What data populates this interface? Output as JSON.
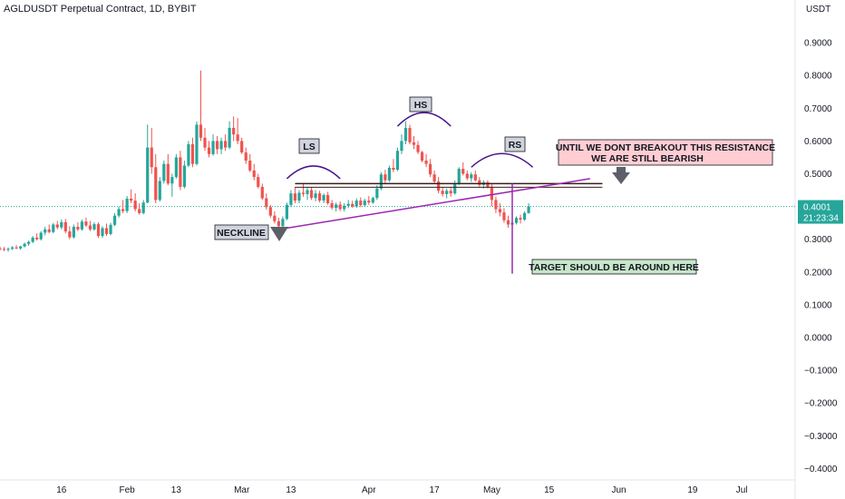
{
  "header": {
    "title": "AGLDUSDT Perpetual Contract, 1D, BYBIT",
    "currency": "USDT"
  },
  "price_tag": {
    "price": "0.4001",
    "countdown": "21:23:34"
  },
  "colors": {
    "up": "#26a69a",
    "down": "#ef5350",
    "neckline": "#9c27b0",
    "resistance": "#3a1c1c",
    "tag_bg": "#26a69a"
  },
  "annotations": {
    "neckline": "NECKLINE",
    "ls": "LS",
    "hs": "HS",
    "rs": "RS",
    "resistance_line1": "UNTIL WE DONT BREAKOUT THIS RESISTANCE",
    "resistance_line2": "WE ARE STILL BEARISH",
    "target": "TARGET SHOULD BE AROUND HERE"
  },
  "chart_data": {
    "type": "candlestick",
    "symbol": "AGLDUSDT",
    "timeframe": "1D",
    "exchange": "BYBIT",
    "ylim": [
      -0.42,
      0.98
    ],
    "y_ticks": [
      0.9,
      0.8,
      0.7,
      0.6,
      0.5,
      0.4,
      0.3,
      0.2,
      0.1,
      0.0,
      -0.1,
      -0.2,
      -0.3,
      -0.4
    ],
    "y_tick_labels": [
      "0.9000",
      "0.8000",
      "0.7000",
      "0.6000",
      "0.5000",
      "0.4000",
      "0.3000",
      "0.2000",
      "0.1000",
      "0.0000",
      "−0.1000",
      "−0.2000",
      "−0.3000",
      "−0.4000"
    ],
    "x_range": [
      "2023-01-01",
      "2023-07-03"
    ],
    "x_ticks": [
      {
        "date": "2023-01-16",
        "label": "16"
      },
      {
        "date": "2023-02-01",
        "label": "Feb"
      },
      {
        "date": "2023-02-13",
        "label": "13"
      },
      {
        "date": "2023-03-01",
        "label": "Mar"
      },
      {
        "date": "2023-03-13",
        "label": "13"
      },
      {
        "date": "2023-04-01",
        "label": "Apr"
      },
      {
        "date": "2023-04-17",
        "label": "17"
      },
      {
        "date": "2023-05-01",
        "label": "May"
      },
      {
        "date": "2023-05-15",
        "label": "15"
      },
      {
        "date": "2023-06-01",
        "label": "Jun"
      },
      {
        "date": "2023-06-19",
        "label": "19"
      },
      {
        "date": "2023-07-01",
        "label": "Jul"
      }
    ],
    "last_price": 0.4001,
    "start_date": "2023-01-01",
    "candles": [
      [
        0.272,
        0.278,
        0.266,
        0.27
      ],
      [
        0.27,
        0.276,
        0.264,
        0.268
      ],
      [
        0.268,
        0.275,
        0.262,
        0.271
      ],
      [
        0.271,
        0.279,
        0.267,
        0.275
      ],
      [
        0.275,
        0.282,
        0.27,
        0.272
      ],
      [
        0.272,
        0.28,
        0.268,
        0.278
      ],
      [
        0.278,
        0.29,
        0.275,
        0.286
      ],
      [
        0.286,
        0.296,
        0.28,
        0.292
      ],
      [
        0.292,
        0.31,
        0.288,
        0.305
      ],
      [
        0.305,
        0.318,
        0.296,
        0.3
      ],
      [
        0.3,
        0.325,
        0.296,
        0.32
      ],
      [
        0.32,
        0.338,
        0.312,
        0.33
      ],
      [
        0.33,
        0.345,
        0.318,
        0.322
      ],
      [
        0.322,
        0.35,
        0.318,
        0.345
      ],
      [
        0.345,
        0.356,
        0.33,
        0.336
      ],
      [
        0.336,
        0.36,
        0.33,
        0.352
      ],
      [
        0.352,
        0.362,
        0.318,
        0.324
      ],
      [
        0.324,
        0.34,
        0.3,
        0.306
      ],
      [
        0.306,
        0.345,
        0.302,
        0.338
      ],
      [
        0.338,
        0.352,
        0.325,
        0.33
      ],
      [
        0.33,
        0.36,
        0.326,
        0.354
      ],
      [
        0.354,
        0.366,
        0.338,
        0.342
      ],
      [
        0.342,
        0.356,
        0.325,
        0.33
      ],
      [
        0.33,
        0.352,
        0.326,
        0.346
      ],
      [
        0.346,
        0.352,
        0.304,
        0.31
      ],
      [
        0.31,
        0.34,
        0.304,
        0.334
      ],
      [
        0.334,
        0.348,
        0.31,
        0.316
      ],
      [
        0.316,
        0.35,
        0.312,
        0.344
      ],
      [
        0.344,
        0.38,
        0.34,
        0.372
      ],
      [
        0.372,
        0.4,
        0.366,
        0.392
      ],
      [
        0.392,
        0.42,
        0.38,
        0.386
      ],
      [
        0.386,
        0.432,
        0.38,
        0.424
      ],
      [
        0.424,
        0.452,
        0.41,
        0.418
      ],
      [
        0.418,
        0.44,
        0.385,
        0.392
      ],
      [
        0.392,
        0.41,
        0.375,
        0.38
      ],
      [
        0.38,
        0.42,
        0.376,
        0.412
      ],
      [
        0.412,
        0.65,
        0.41,
        0.58
      ],
      [
        0.58,
        0.64,
        0.5,
        0.52
      ],
      [
        0.52,
        0.56,
        0.41,
        0.42
      ],
      [
        0.42,
        0.49,
        0.415,
        0.478
      ],
      [
        0.478,
        0.54,
        0.47,
        0.53
      ],
      [
        0.53,
        0.56,
        0.465,
        0.47
      ],
      [
        0.47,
        0.5,
        0.43,
        0.49
      ],
      [
        0.49,
        0.56,
        0.485,
        0.55
      ],
      [
        0.55,
        0.57,
        0.45,
        0.46
      ],
      [
        0.46,
        0.54,
        0.455,
        0.525
      ],
      [
        0.525,
        0.6,
        0.52,
        0.59
      ],
      [
        0.59,
        0.61,
        0.52,
        0.53
      ],
      [
        0.53,
        0.66,
        0.525,
        0.65
      ],
      [
        0.65,
        0.815,
        0.6,
        0.61
      ],
      [
        0.61,
        0.64,
        0.57,
        0.58
      ],
      [
        0.58,
        0.6,
        0.55,
        0.56
      ],
      [
        0.56,
        0.62,
        0.555,
        0.6
      ],
      [
        0.6,
        0.615,
        0.56,
        0.575
      ],
      [
        0.575,
        0.61,
        0.56,
        0.6
      ],
      [
        0.6,
        0.62,
        0.57,
        0.58
      ],
      [
        0.58,
        0.66,
        0.575,
        0.64
      ],
      [
        0.64,
        0.675,
        0.6,
        0.62
      ],
      [
        0.62,
        0.67,
        0.59,
        0.6
      ],
      [
        0.6,
        0.61,
        0.56,
        0.565
      ],
      [
        0.565,
        0.58,
        0.53,
        0.54
      ],
      [
        0.54,
        0.56,
        0.505,
        0.51
      ],
      [
        0.51,
        0.53,
        0.48,
        0.49
      ],
      [
        0.49,
        0.5,
        0.455,
        0.46
      ],
      [
        0.46,
        0.47,
        0.42,
        0.425
      ],
      [
        0.425,
        0.44,
        0.39,
        0.398
      ],
      [
        0.398,
        0.405,
        0.365,
        0.372
      ],
      [
        0.372,
        0.385,
        0.348,
        0.355
      ],
      [
        0.355,
        0.366,
        0.33,
        0.34
      ],
      [
        0.34,
        0.37,
        0.334,
        0.362
      ],
      [
        0.362,
        0.412,
        0.358,
        0.405
      ],
      [
        0.405,
        0.45,
        0.398,
        0.44
      ],
      [
        0.44,
        0.46,
        0.41,
        0.418
      ],
      [
        0.418,
        0.45,
        0.41,
        0.442
      ],
      [
        0.442,
        0.47,
        0.43,
        0.438
      ],
      [
        0.438,
        0.46,
        0.42,
        0.45
      ],
      [
        0.45,
        0.458,
        0.42,
        0.426
      ],
      [
        0.426,
        0.45,
        0.416,
        0.44
      ],
      [
        0.44,
        0.448,
        0.412,
        0.418
      ],
      [
        0.418,
        0.44,
        0.41,
        0.435
      ],
      [
        0.435,
        0.445,
        0.405,
        0.41
      ],
      [
        0.41,
        0.42,
        0.39,
        0.396
      ],
      [
        0.396,
        0.412,
        0.385,
        0.406
      ],
      [
        0.406,
        0.416,
        0.386,
        0.392
      ],
      [
        0.392,
        0.41,
        0.385,
        0.402
      ],
      [
        0.402,
        0.42,
        0.395,
        0.408
      ],
      [
        0.408,
        0.418,
        0.396,
        0.4
      ],
      [
        0.4,
        0.425,
        0.396,
        0.418
      ],
      [
        0.418,
        0.428,
        0.398,
        0.404
      ],
      [
        0.404,
        0.424,
        0.4,
        0.418
      ],
      [
        0.418,
        0.432,
        0.405,
        0.412
      ],
      [
        0.412,
        0.43,
        0.408,
        0.426
      ],
      [
        0.426,
        0.465,
        0.42,
        0.455
      ],
      [
        0.455,
        0.505,
        0.45,
        0.498
      ],
      [
        0.498,
        0.512,
        0.47,
        0.48
      ],
      [
        0.48,
        0.525,
        0.475,
        0.518
      ],
      [
        0.518,
        0.545,
        0.505,
        0.512
      ],
      [
        0.512,
        0.58,
        0.508,
        0.57
      ],
      [
        0.57,
        0.62,
        0.56,
        0.6
      ],
      [
        0.6,
        0.66,
        0.59,
        0.64
      ],
      [
        0.64,
        0.65,
        0.59,
        0.596
      ],
      [
        0.596,
        0.615,
        0.575,
        0.588
      ],
      [
        0.588,
        0.6,
        0.56,
        0.566
      ],
      [
        0.566,
        0.57,
        0.535,
        0.54
      ],
      [
        0.54,
        0.56,
        0.52,
        0.53
      ],
      [
        0.53,
        0.545,
        0.49,
        0.498
      ],
      [
        0.498,
        0.51,
        0.47,
        0.476
      ],
      [
        0.476,
        0.49,
        0.44,
        0.448
      ],
      [
        0.448,
        0.46,
        0.43,
        0.438
      ],
      [
        0.438,
        0.455,
        0.425,
        0.448
      ],
      [
        0.448,
        0.46,
        0.43,
        0.44
      ],
      [
        0.44,
        0.48,
        0.436,
        0.47
      ],
      [
        0.47,
        0.52,
        0.465,
        0.515
      ],
      [
        0.515,
        0.535,
        0.495,
        0.5
      ],
      [
        0.5,
        0.51,
        0.48,
        0.486
      ],
      [
        0.486,
        0.505,
        0.475,
        0.498
      ],
      [
        0.498,
        0.51,
        0.476,
        0.48
      ],
      [
        0.48,
        0.49,
        0.46,
        0.466
      ],
      [
        0.466,
        0.48,
        0.455,
        0.474
      ],
      [
        0.474,
        0.48,
        0.455,
        0.46
      ],
      [
        0.46,
        0.47,
        0.4,
        0.42
      ],
      [
        0.42,
        0.43,
        0.38,
        0.392
      ],
      [
        0.392,
        0.41,
        0.37,
        0.382
      ],
      [
        0.382,
        0.395,
        0.35,
        0.358
      ],
      [
        0.358,
        0.372,
        0.335,
        0.345
      ],
      [
        0.345,
        0.36,
        0.33,
        0.35
      ],
      [
        0.35,
        0.37,
        0.345,
        0.365
      ],
      [
        0.365,
        0.375,
        0.348,
        0.36
      ],
      [
        0.36,
        0.385,
        0.356,
        0.38
      ],
      [
        0.38,
        0.41,
        0.378,
        0.4001
      ]
    ],
    "resistance": {
      "price": 0.47,
      "from_date": "2023-03-14",
      "to_date": "2023-05-28"
    },
    "neckline": {
      "from_date": "2023-03-10",
      "from_price": 0.33,
      "to_date": "2023-05-25",
      "to_price": 0.485
    },
    "target": {
      "date": "2023-05-06",
      "from_price": 0.47,
      "to_price": 0.195
    }
  }
}
